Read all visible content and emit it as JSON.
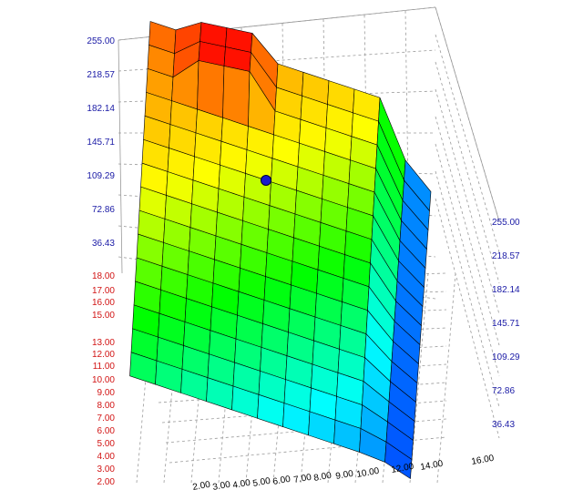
{
  "chart_data": {
    "type": "surface3d",
    "title": "",
    "zlim": [
      0,
      255
    ],
    "z_ticks": [
      "255.00",
      "218.57",
      "182.14",
      "145.71",
      "109.29",
      "72.86",
      "36.43"
    ],
    "y_ticks": [
      "18.00",
      "17.00",
      "16.00",
      "15.00",
      "13.00",
      "12.00",
      "11.00",
      "10.00",
      "9.00",
      "8.00",
      "7.00",
      "6.00",
      "5.00",
      "4.00",
      "3.00",
      "2.00"
    ],
    "x_ticks": [
      "2.00",
      "3.00",
      "4.00",
      "5.00",
      "6.00",
      "7.00",
      "8.00",
      "9.00",
      "10.00",
      "12.00",
      "14.00",
      "16.00"
    ],
    "grid": true,
    "colormap": [
      "#0000ff",
      "#00ffff",
      "#00ff00",
      "#ffff00",
      "#ff8000",
      "#ff0000"
    ],
    "marker_color": "#1a1acc",
    "grid_color": "#9a9a9a"
  }
}
